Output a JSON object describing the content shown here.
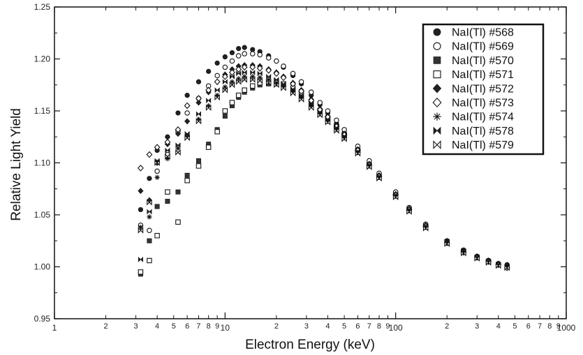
{
  "chart_data": {
    "type": "scatter",
    "title": "",
    "xlabel": "Electron Energy (keV)",
    "ylabel": "Relative Light Yield",
    "xscale": "log",
    "xlim": [
      1,
      1000
    ],
    "ylim": [
      0.95,
      1.25
    ],
    "x_major_ticks": [
      {
        "value": 1,
        "label": "1"
      },
      {
        "value": 10,
        "label": "10"
      },
      {
        "value": 100,
        "label": "100"
      },
      {
        "value": 1000,
        "label": "1000"
      }
    ],
    "x_minor_ticks": [
      {
        "value": 2,
        "label": "2"
      },
      {
        "value": 3,
        "label": "3"
      },
      {
        "value": 4,
        "label": "4"
      },
      {
        "value": 5,
        "label": "5"
      },
      {
        "value": 6,
        "label": "6"
      },
      {
        "value": 7,
        "label": "7"
      },
      {
        "value": 8,
        "label": "8"
      },
      {
        "value": 9,
        "label": "9"
      },
      {
        "value": 20,
        "label": "2"
      },
      {
        "value": 30,
        "label": "3"
      },
      {
        "value": 40,
        "label": "4"
      },
      {
        "value": 50,
        "label": "5"
      },
      {
        "value": 60,
        "label": "6"
      },
      {
        "value": 70,
        "label": "7"
      },
      {
        "value": 80,
        "label": "8"
      },
      {
        "value": 90,
        "label": "9"
      },
      {
        "value": 200,
        "label": "2"
      },
      {
        "value": 300,
        "label": "3"
      },
      {
        "value": 400,
        "label": "4"
      },
      {
        "value": 500,
        "label": "5"
      },
      {
        "value": 600,
        "label": "6"
      },
      {
        "value": 700,
        "label": "7"
      },
      {
        "value": 800,
        "label": "8"
      },
      {
        "value": 900,
        "label": "9"
      }
    ],
    "y_ticks": [
      {
        "value": 0.95,
        "label": "0.95"
      },
      {
        "value": 1.0,
        "label": "1.00"
      },
      {
        "value": 1.05,
        "label": "1.05"
      },
      {
        "value": 1.1,
        "label": "1.10"
      },
      {
        "value": 1.15,
        "label": "1.15"
      },
      {
        "value": 1.2,
        "label": "1.20"
      },
      {
        "value": 1.25,
        "label": "1.25"
      }
    ],
    "grid": false,
    "legend_position": "top-right",
    "series": [
      {
        "name": "NaI(Tl) #568",
        "marker": "filled-circle",
        "x": [
          3.2,
          3.6,
          4.0,
          4.6,
          5.3,
          6.0,
          7.0,
          8.0,
          9.0,
          10.0,
          11.0,
          12.0,
          13.0,
          14.5,
          16.0,
          18.0,
          20.0,
          22.0,
          25.0,
          28.0,
          32.0,
          36.0,
          40.0,
          45.0,
          50.0,
          60.0,
          70.0,
          80.0,
          100.0,
          120.0,
          150.0,
          200.0,
          250.0,
          300.0,
          350.0,
          400.0,
          450.0
        ],
        "y": [
          1.055,
          1.085,
          1.112,
          1.125,
          1.148,
          1.165,
          1.178,
          1.188,
          1.196,
          1.202,
          1.206,
          1.21,
          1.211,
          1.209,
          1.207,
          1.203,
          1.198,
          1.192,
          1.184,
          1.176,
          1.165,
          1.156,
          1.148,
          1.138,
          1.129,
          1.113,
          1.099,
          1.088,
          1.07,
          1.056,
          1.04,
          1.024,
          1.015,
          1.01,
          1.006,
          1.003,
          1.002
        ]
      },
      {
        "name": "NaI(Tl) #569",
        "marker": "open-circle",
        "x": [
          3.2,
          3.6,
          4.0,
          4.6,
          5.3,
          6.0,
          7.0,
          8.0,
          9.0,
          10.0,
          11.0,
          12.0,
          13.0,
          14.5,
          16.0,
          18.0,
          20.0,
          22.0,
          25.0,
          28.0,
          32.0,
          36.0,
          40.0,
          45.0,
          50.0,
          60.0,
          70.0,
          80.0,
          100.0,
          120.0,
          150.0,
          200.0,
          250.0,
          300.0,
          350.0,
          400.0,
          450.0
        ],
        "y": [
          1.04,
          1.035,
          1.092,
          1.108,
          1.13,
          1.148,
          1.162,
          1.174,
          1.184,
          1.192,
          1.198,
          1.203,
          1.205,
          1.205,
          1.204,
          1.201,
          1.198,
          1.193,
          1.186,
          1.178,
          1.168,
          1.158,
          1.15,
          1.141,
          1.132,
          1.116,
          1.102,
          1.09,
          1.072,
          1.057,
          1.041,
          1.025,
          1.016,
          1.01,
          1.006,
          1.003,
          1.001
        ]
      },
      {
        "name": "NaI(Tl) #570",
        "marker": "filled-square",
        "x": [
          3.2,
          3.6,
          4.0,
          4.6,
          5.3,
          6.0,
          7.0,
          8.0,
          9.0,
          10.0,
          11.0,
          12.0,
          13.0,
          14.5,
          16.0,
          18.0,
          20.0,
          22.0,
          25.0,
          28.0,
          32.0,
          36.0,
          40.0,
          45.0,
          50.0,
          60.0,
          70.0,
          80.0,
          100.0,
          120.0,
          150.0,
          200.0,
          250.0,
          300.0,
          350.0,
          400.0,
          450.0
        ],
        "y": [
          0.993,
          1.025,
          1.058,
          1.063,
          1.072,
          1.088,
          1.102,
          1.118,
          1.132,
          1.145,
          1.155,
          1.163,
          1.168,
          1.172,
          1.175,
          1.176,
          1.176,
          1.174,
          1.17,
          1.164,
          1.156,
          1.148,
          1.141,
          1.133,
          1.125,
          1.11,
          1.097,
          1.086,
          1.068,
          1.054,
          1.038,
          1.023,
          1.014,
          1.009,
          1.005,
          1.002,
          1.0
        ]
      },
      {
        "name": "NaI(Tl) #571",
        "marker": "open-square",
        "x": [
          3.2,
          3.6,
          4.0,
          4.6,
          5.3,
          6.0,
          7.0,
          8.0,
          9.0,
          10.0,
          11.0,
          12.0,
          13.0,
          14.5,
          16.0,
          18.0,
          20.0,
          22.0,
          25.0,
          28.0,
          32.0,
          36.0,
          40.0,
          45.0,
          50.0,
          60.0,
          70.0,
          80.0,
          100.0,
          120.0,
          150.0,
          200.0,
          250.0,
          300.0,
          350.0,
          400.0,
          450.0
        ],
        "y": [
          0.995,
          1.006,
          1.03,
          1.072,
          1.043,
          1.083,
          1.097,
          1.115,
          1.13,
          1.15,
          1.158,
          1.165,
          1.17,
          1.174,
          1.177,
          1.178,
          1.178,
          1.176,
          1.172,
          1.166,
          1.158,
          1.15,
          1.143,
          1.135,
          1.127,
          1.112,
          1.098,
          1.087,
          1.069,
          1.055,
          1.039,
          1.024,
          1.015,
          1.009,
          1.005,
          1.002,
          1.0
        ]
      },
      {
        "name": "NaI(Tl) #572",
        "marker": "filled-diamond",
        "x": [
          3.2,
          3.6,
          4.0,
          4.6,
          5.3,
          6.0,
          7.0,
          8.0,
          9.0,
          10.0,
          11.0,
          12.0,
          13.0,
          14.5,
          16.0,
          18.0,
          20.0,
          22.0,
          25.0,
          28.0,
          32.0,
          36.0,
          40.0,
          45.0,
          50.0,
          60.0,
          70.0,
          80.0,
          100.0,
          120.0,
          150.0,
          200.0,
          250.0,
          300.0,
          350.0,
          400.0,
          450.0
        ],
        "y": [
          1.073,
          1.064,
          1.1,
          1.118,
          1.128,
          1.14,
          1.158,
          1.168,
          1.178,
          1.185,
          1.19,
          1.193,
          1.194,
          1.194,
          1.193,
          1.19,
          1.187,
          1.183,
          1.177,
          1.17,
          1.161,
          1.152,
          1.145,
          1.136,
          1.128,
          1.113,
          1.099,
          1.088,
          1.07,
          1.056,
          1.04,
          1.024,
          1.015,
          1.01,
          1.006,
          1.003,
          1.001
        ]
      },
      {
        "name": "NaI(Tl) #573",
        "marker": "open-diamond",
        "x": [
          3.2,
          3.6,
          4.0,
          4.6,
          5.3,
          6.0,
          7.0,
          8.0,
          9.0,
          10.0,
          11.0,
          12.0,
          13.0,
          14.5,
          16.0,
          18.0,
          20.0,
          22.0,
          25.0,
          28.0,
          32.0,
          36.0,
          40.0,
          45.0,
          50.0,
          60.0,
          70.0,
          80.0,
          100.0,
          120.0,
          150.0,
          200.0,
          250.0,
          300.0,
          350.0,
          400.0,
          450.0
        ],
        "y": [
          1.095,
          1.108,
          1.115,
          1.12,
          1.132,
          1.155,
          1.162,
          1.17,
          1.178,
          1.183,
          1.187,
          1.19,
          1.192,
          1.192,
          1.191,
          1.189,
          1.186,
          1.182,
          1.176,
          1.169,
          1.16,
          1.151,
          1.144,
          1.135,
          1.127,
          1.112,
          1.098,
          1.087,
          1.069,
          1.055,
          1.039,
          1.023,
          1.014,
          1.009,
          1.005,
          1.002,
          0.999
        ]
      },
      {
        "name": "NaI(Tl) #574",
        "marker": "asterisk",
        "x": [
          3.2,
          3.6,
          4.0,
          4.6,
          5.3,
          6.0,
          7.0,
          8.0,
          9.0,
          10.0,
          11.0,
          12.0,
          13.0,
          14.5,
          16.0,
          18.0,
          20.0,
          22.0,
          25.0,
          28.0,
          32.0,
          36.0,
          40.0,
          45.0,
          50.0,
          60.0,
          70.0,
          80.0,
          100.0,
          120.0,
          150.0,
          200.0,
          250.0,
          300.0,
          350.0,
          400.0,
          450.0
        ],
        "y": [
          1.038,
          1.048,
          1.086,
          1.104,
          1.114,
          1.126,
          1.142,
          1.155,
          1.165,
          1.173,
          1.178,
          1.181,
          1.183,
          1.183,
          1.182,
          1.18,
          1.177,
          1.174,
          1.169,
          1.163,
          1.155,
          1.147,
          1.14,
          1.132,
          1.124,
          1.11,
          1.097,
          1.086,
          1.068,
          1.054,
          1.038,
          1.023,
          1.014,
          1.009,
          1.005,
          1.002,
          1.0
        ]
      },
      {
        "name": "NaI(Tl) #578",
        "marker": "bowtie-filled",
        "x": [
          3.2,
          3.6,
          4.0,
          4.6,
          5.3,
          6.0,
          7.0,
          8.0,
          9.0,
          10.0,
          11.0,
          12.0,
          13.0,
          14.5,
          16.0,
          18.0,
          20.0,
          22.0,
          25.0,
          28.0,
          32.0,
          36.0,
          40.0,
          45.0,
          50.0,
          60.0,
          70.0,
          80.0,
          100.0,
          120.0,
          150.0,
          200.0,
          250.0,
          300.0,
          350.0,
          400.0,
          450.0
        ],
        "y": [
          1.007,
          1.053,
          1.102,
          1.112,
          1.117,
          1.128,
          1.147,
          1.16,
          1.17,
          1.178,
          1.183,
          1.186,
          1.187,
          1.187,
          1.186,
          1.183,
          1.18,
          1.176,
          1.171,
          1.165,
          1.157,
          1.149,
          1.142,
          1.134,
          1.126,
          1.111,
          1.098,
          1.087,
          1.069,
          1.055,
          1.039,
          1.024,
          1.015,
          1.009,
          1.005,
          1.002,
          1.0
        ]
      },
      {
        "name": "NaI(Tl) #579",
        "marker": "bowtie-open",
        "x": [
          3.2,
          3.6,
          4.0,
          4.6,
          5.3,
          6.0,
          7.0,
          8.0,
          9.0,
          10.0,
          11.0,
          12.0,
          13.0,
          14.5,
          16.0,
          18.0,
          20.0,
          22.0,
          25.0,
          28.0,
          32.0,
          36.0,
          40.0,
          45.0,
          50.0,
          60.0,
          70.0,
          80.0,
          100.0,
          120.0,
          150.0,
          200.0,
          250.0,
          300.0,
          350.0,
          400.0,
          450.0
        ],
        "y": [
          1.035,
          1.062,
          1.1,
          1.106,
          1.11,
          1.124,
          1.14,
          1.153,
          1.163,
          1.17,
          1.175,
          1.178,
          1.18,
          1.18,
          1.179,
          1.177,
          1.175,
          1.172,
          1.167,
          1.161,
          1.153,
          1.146,
          1.139,
          1.131,
          1.123,
          1.109,
          1.096,
          1.085,
          1.067,
          1.053,
          1.037,
          1.022,
          1.013,
          1.008,
          1.004,
          1.001,
          0.999
        ]
      }
    ]
  }
}
